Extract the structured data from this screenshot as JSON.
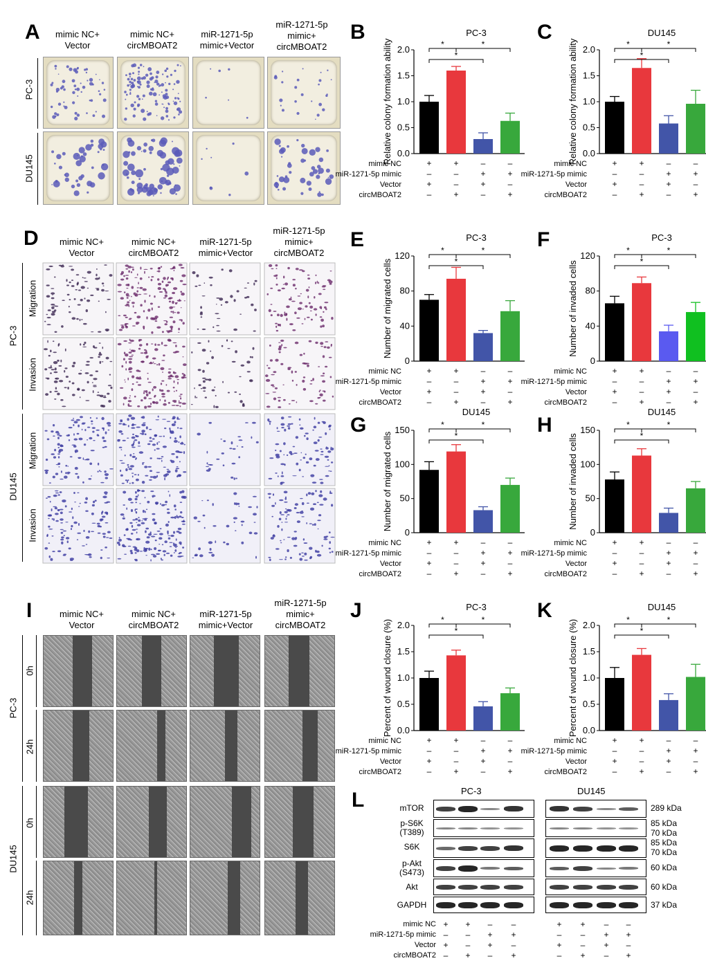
{
  "panel_letters": [
    "A",
    "B",
    "C",
    "D",
    "E",
    "F",
    "G",
    "H",
    "I",
    "J",
    "K",
    "L"
  ],
  "image_panels": {
    "A": {
      "columns": [
        "mimic NC+ Vector",
        "mimic NC+ circMBOAT2",
        "miR-1271-5p mimic+Vector",
        "miR-1271-5p mimic+ circMBOAT2"
      ],
      "column_lines": [
        [
          "mimic NC+",
          "Vector"
        ],
        [
          "mimic NC+",
          "circMBOAT2"
        ],
        [
          "miR-1271-5p",
          "mimic+Vector"
        ],
        [
          "miR-1271-5p",
          "mimic+",
          "circMBOAT2"
        ]
      ],
      "rows": [
        "PC-3",
        "DU145"
      ]
    },
    "D": {
      "column_lines": [
        [
          "mimic NC+",
          "Vector"
        ],
        [
          "mimic NC+",
          "circMBOAT2"
        ],
        [
          "miR-1271-5p",
          "mimic+Vector"
        ],
        [
          "miR-1271-5p",
          "mimic+",
          "circMBOAT2"
        ]
      ],
      "groups": [
        "PC-3",
        "DU145"
      ],
      "rows": [
        "Migration",
        "Invasion",
        "Migration",
        "Invasion"
      ]
    },
    "I": {
      "column_lines": [
        [
          "mimic NC+",
          "Vector"
        ],
        [
          "mimic NC+",
          "circMBOAT2"
        ],
        [
          "miR-1271-5p",
          "mimic+Vector"
        ],
        [
          "miR-1271-5p",
          "mimic+",
          "circMBOAT2"
        ]
      ],
      "groups": [
        "PC-3",
        "DU145"
      ],
      "rows": [
        "0h",
        "24h",
        "0h",
        "24h"
      ]
    }
  },
  "condition_labels": [
    "mimic NC",
    "miR-1271-5p mimic",
    "Vector",
    "circMBOAT2"
  ],
  "condition_signs": [
    [
      "+",
      "+",
      "–",
      "–"
    ],
    [
      "–",
      "–",
      "+",
      "+"
    ],
    [
      "+",
      "–",
      "+",
      "–"
    ],
    [
      "–",
      "+",
      "–",
      "+"
    ]
  ],
  "colors": {
    "black": "#000000",
    "red": "#e8383d",
    "blue": "#4255a8",
    "green": "#38a83c",
    "blue_bright": "#5a5af0",
    "green_bright": "#10c020"
  },
  "chart_data": [
    {
      "panel": "B",
      "type": "bar",
      "title": "PC-3",
      "ylabel": "Relative colony formation ability",
      "ylim": [
        0,
        2.0
      ],
      "yticks": [
        "0.0",
        "0.5",
        "1.0",
        "1.5",
        "2.0"
      ],
      "values": [
        1.0,
        1.6,
        0.28,
        0.63
      ],
      "errors": [
        0.12,
        0.08,
        0.12,
        0.15
      ],
      "significance": [
        "*",
        "*",
        "*"
      ]
    },
    {
      "panel": "C",
      "type": "bar",
      "title": "DU145",
      "ylabel": "Relative colony formation ability",
      "ylim": [
        0,
        2.0
      ],
      "yticks": [
        "0.0",
        "0.5",
        "1.0",
        "1.5",
        "2.0"
      ],
      "values": [
        1.0,
        1.65,
        0.58,
        0.96
      ],
      "errors": [
        0.1,
        0.18,
        0.15,
        0.26
      ],
      "significance": [
        "*",
        "*",
        "*"
      ]
    },
    {
      "panel": "E",
      "type": "bar",
      "title": "PC-3",
      "ylabel": "Number of migrated cells",
      "ylim": [
        0,
        120
      ],
      "yticks": [
        "0",
        "40",
        "80",
        "120"
      ],
      "values": [
        70,
        94,
        32,
        57
      ],
      "errors": [
        6,
        13,
        3,
        12
      ],
      "significance": [
        "*",
        "*",
        "*"
      ]
    },
    {
      "panel": "F",
      "type": "bar",
      "title": "PC-3",
      "ylabel": "Number of invaded cells",
      "ylim": [
        0,
        120
      ],
      "yticks": [
        "0",
        "40",
        "80",
        "120"
      ],
      "values": [
        66,
        89,
        34,
        56
      ],
      "errors": [
        8,
        7,
        7,
        11
      ],
      "significance": [
        "*",
        "*",
        "*"
      ]
    },
    {
      "panel": "G",
      "type": "bar",
      "title": "DU145",
      "ylabel": "Number of migrated cells",
      "ylim": [
        0,
        150
      ],
      "yticks": [
        "0",
        "50",
        "100",
        "150"
      ],
      "values": [
        92,
        119,
        33,
        70
      ],
      "errors": [
        12,
        10,
        5,
        10
      ],
      "significance": [
        "*",
        "*",
        "*"
      ]
    },
    {
      "panel": "H",
      "type": "bar",
      "title": "DU145",
      "ylabel": "Number of invaded cells",
      "ylim": [
        0,
        150
      ],
      "yticks": [
        "0",
        "50",
        "100",
        "150"
      ],
      "values": [
        78,
        113,
        29,
        65
      ],
      "errors": [
        11,
        10,
        7,
        10
      ],
      "significance": [
        "*",
        "*",
        "*"
      ]
    },
    {
      "panel": "J",
      "type": "bar",
      "title": "PC-3",
      "ylabel": "Percent of wound closure (%)",
      "ylim": [
        0,
        2.0
      ],
      "yticks": [
        "0.0",
        "0.5",
        "1.0",
        "1.5",
        "2.0"
      ],
      "values": [
        1.0,
        1.43,
        0.46,
        0.71
      ],
      "errors": [
        0.13,
        0.1,
        0.09,
        0.1
      ],
      "significance": [
        "*",
        "*",
        "*"
      ]
    },
    {
      "panel": "K",
      "type": "bar",
      "title": "DU145",
      "ylabel": "Percent of wound closure (%)",
      "ylim": [
        0,
        2.0
      ],
      "yticks": [
        "0.0",
        "0.5",
        "1.0",
        "1.5",
        "2.0"
      ],
      "values": [
        1.0,
        1.44,
        0.58,
        1.02
      ],
      "errors": [
        0.2,
        0.12,
        0.12,
        0.24
      ],
      "significance": [
        "*",
        "*",
        "*"
      ]
    }
  ],
  "western_blot": {
    "cell_lines": [
      "PC-3",
      "DU145"
    ],
    "proteins": [
      {
        "label": "mTOR",
        "kda": [
          "289 kDa"
        ]
      },
      {
        "label": "p-S6K (T389)",
        "lines": [
          "p-S6K",
          "(T389)"
        ],
        "kda": [
          "85 kDa",
          "70 kDa"
        ]
      },
      {
        "label": "S6K",
        "kda": [
          "85 kDa",
          "70 kDa"
        ]
      },
      {
        "label": "p-Akt (S473)",
        "lines": [
          "p-Akt",
          "(S473)"
        ],
        "kda": [
          "60 kDa"
        ]
      },
      {
        "label": "Akt",
        "kda": [
          "60 kDa"
        ]
      },
      {
        "label": "GAPDH",
        "kda": [
          "37 kDa"
        ]
      }
    ]
  }
}
